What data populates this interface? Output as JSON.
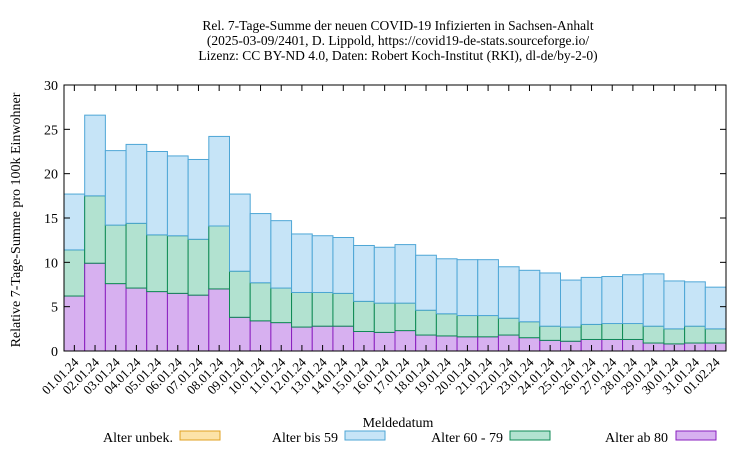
{
  "chart_data": {
    "type": "bar",
    "stacked": true,
    "title_lines": [
      "Rel. 7-Tage-Summe der neuen COVID-19 Infizierten in Sachsen-Anhalt",
      "(2025-03-09/2401, D. Lippold, https://covid19-de-stats.sourceforge.io/",
      "Lizenz: CC BY-ND 4.0, Daten: Robert Koch-Institut (RKI), dl-de/by-2-0)"
    ],
    "xlabel": "Meldedatum",
    "ylabel": "Relative 7-Tage-Summe pro 100k Einwohner",
    "ylim": [
      0,
      30
    ],
    "yticks": [
      "0",
      "5",
      "10",
      "15",
      "20",
      "25",
      "30"
    ],
    "xtick_labels": [
      "01.01.24",
      "02.01.24",
      "03.01.24",
      "04.01.24",
      "05.01.24",
      "06.01.24",
      "07.01.24",
      "08.01.24",
      "09.01.24",
      "10.01.24",
      "11.01.24",
      "12.01.24",
      "13.01.24",
      "14.01.24",
      "15.01.24",
      "16.01.24",
      "17.01.24",
      "18.01.24",
      "19.01.24",
      "20.01.24",
      "21.01.24",
      "22.01.24",
      "23.01.24",
      "24.01.24",
      "25.01.24",
      "26.01.24",
      "27.01.24",
      "28.01.24",
      "29.01.24",
      "30.01.24",
      "31.01.24",
      "01.02.24"
    ],
    "legend_position": "bottom",
    "grid": false,
    "series": [
      {
        "name": "Alter ab 80",
        "color": "#d7b0f0",
        "stroke": "#8a1fbf",
        "values": [
          6.2,
          9.9,
          7.6,
          7.1,
          6.7,
          6.5,
          6.3,
          7.0,
          3.8,
          3.4,
          3.2,
          2.7,
          2.8,
          2.8,
          2.2,
          2.1,
          2.3,
          1.8,
          1.7,
          1.6,
          1.6,
          1.8,
          1.5,
          1.2,
          1.1,
          1.3,
          1.3,
          1.3,
          0.9,
          0.8,
          0.9,
          0.9
        ]
      },
      {
        "name": "Alter 60 - 79",
        "color": "#b2e2d0",
        "stroke": "#0f8a55",
        "values": [
          5.2,
          7.6,
          6.6,
          7.3,
          6.4,
          6.5,
          6.3,
          7.1,
          5.2,
          4.3,
          3.9,
          3.9,
          3.8,
          3.7,
          3.4,
          3.3,
          3.1,
          2.8,
          2.5,
          2.4,
          2.4,
          1.9,
          1.8,
          1.6,
          1.6,
          1.7,
          1.8,
          1.8,
          1.9,
          1.7,
          1.9,
          1.6
        ]
      },
      {
        "name": "Alter bis 59",
        "color": "#c6e4f7",
        "stroke": "#4ea6d6",
        "values": [
          6.3,
          9.1,
          8.4,
          8.9,
          9.4,
          9.0,
          9.0,
          10.1,
          8.7,
          7.8,
          7.6,
          6.6,
          6.4,
          6.3,
          6.3,
          6.3,
          6.6,
          6.2,
          6.2,
          6.3,
          6.3,
          5.8,
          5.8,
          6.0,
          5.3,
          5.3,
          5.3,
          5.5,
          5.9,
          5.4,
          5.0,
          4.7
        ]
      },
      {
        "name": "Alter unbek.",
        "color": "#fce3a8",
        "stroke": "#e0a020",
        "values": [
          0,
          0,
          0,
          0,
          0,
          0,
          0,
          0,
          0,
          0,
          0,
          0,
          0,
          0,
          0,
          0,
          0,
          0,
          0,
          0,
          0,
          0,
          0,
          0,
          0,
          0,
          0,
          0,
          0,
          0,
          0,
          0
        ]
      }
    ],
    "legend_order": [
      "Alter unbek.",
      "Alter bis 59",
      "Alter 60 - 79",
      "Alter ab 80"
    ]
  }
}
